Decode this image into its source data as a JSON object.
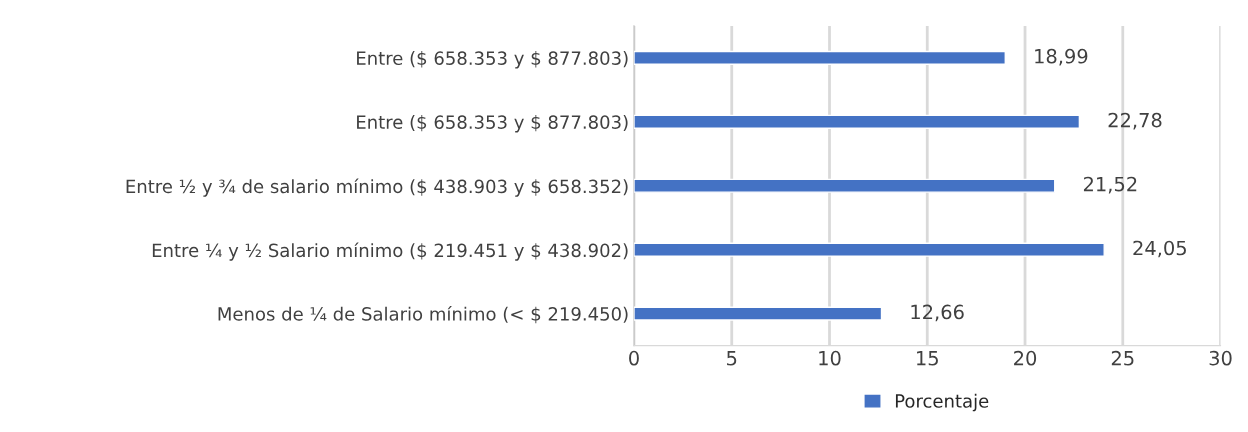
{
  "chart_data": {
    "type": "bar",
    "orientation": "horizontal",
    "categories": [
      "Entre ($ 658.353 y $ 877.803)",
      "Entre ($ 658.353 y $ 877.803)",
      "Entre ½ y ¾ de salario mínimo ($ 438.903 y $ 658.352)",
      "Entre ¼ y ½ Salario mínimo ($ 219.451 y $ 438.902)",
      "Menos de ¼ de Salario mínimo (< $ 219.450)"
    ],
    "series": [
      {
        "name": "Porcentaje",
        "color": "#4472c4",
        "values": [
          18.99,
          22.78,
          21.52,
          24.05,
          12.66
        ],
        "value_labels": [
          "18,99",
          "22,78",
          "21,52",
          "24,05",
          "12,66"
        ]
      }
    ],
    "xlim": [
      0,
      30
    ],
    "xticks": [
      0,
      5,
      10,
      15,
      20,
      25,
      30
    ],
    "grid": "x",
    "legend": "bottom"
  }
}
